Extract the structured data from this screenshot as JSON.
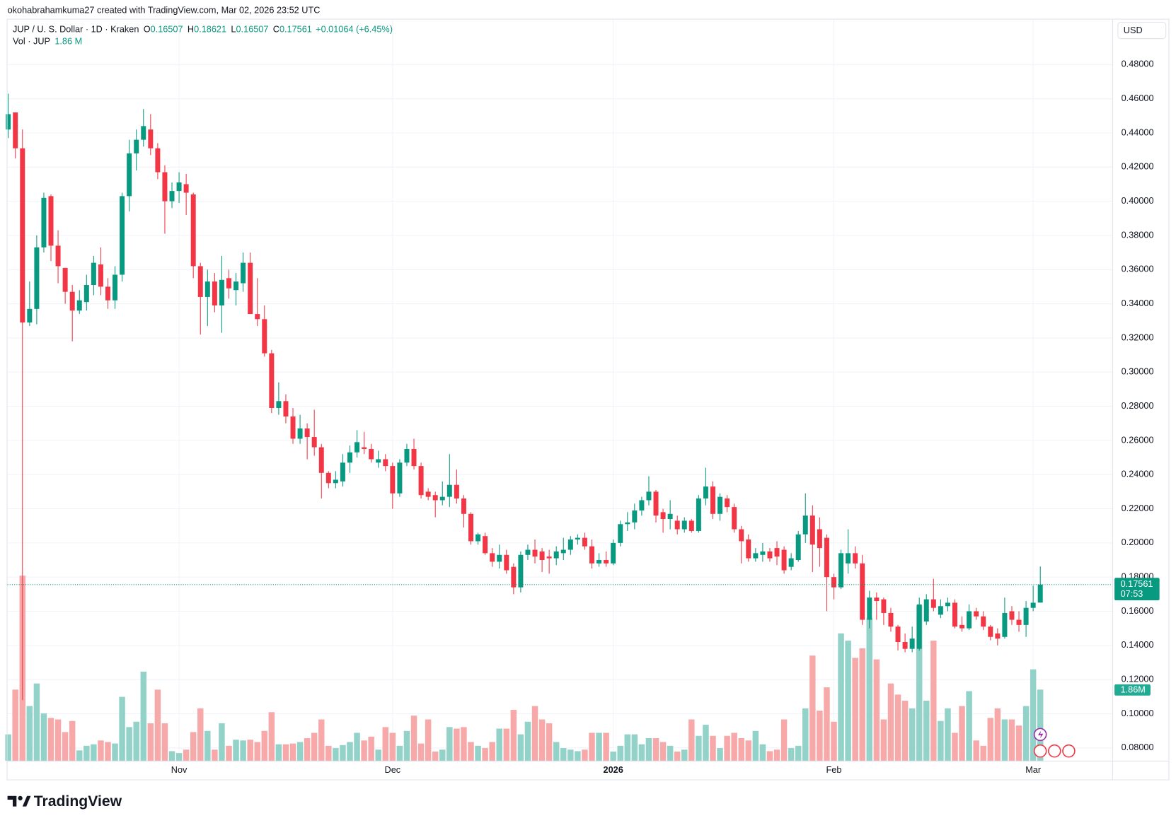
{
  "header": {
    "credit": "okohabrahamkuma27 created with TradingView.com, Mar 02, 2026 23:52 UTC",
    "symbol": "JUP / U. S. Dollar · 1D · Kraken",
    "ohlc_labels": [
      "O",
      "H",
      "L",
      "C"
    ],
    "change": "+0.01064 (+6.45%)",
    "volume_title": "Vol · JUP",
    "volume_value": "1.86 M"
  },
  "footer": {
    "brand": "TradingView"
  },
  "chart_data": {
    "type": "candlestick",
    "currency": "USD",
    "last_price_timer": "07:53",
    "volume_last_label": "1.86M",
    "up_color": "#089981",
    "down_color": "#f23645",
    "volume_up_color": "#92d2c8",
    "volume_down_color": "#f7a9a9",
    "grid": true,
    "categories": [
      null,
      null,
      null,
      null,
      null,
      null,
      null,
      null,
      null,
      null,
      null,
      null,
      null,
      null,
      null,
      null,
      null,
      null,
      null,
      null,
      null,
      null,
      null,
      null,
      "Nov",
      null,
      null,
      null,
      null,
      null,
      null,
      null,
      null,
      null,
      null,
      null,
      null,
      null,
      null,
      null,
      null,
      null,
      null,
      null,
      null,
      null,
      null,
      null,
      null,
      null,
      null,
      null,
      null,
      null,
      "Dec",
      null,
      null,
      null,
      null,
      null,
      null,
      null,
      null,
      null,
      null,
      null,
      null,
      null,
      null,
      null,
      null,
      null,
      null,
      null,
      null,
      null,
      null,
      null,
      null,
      null,
      null,
      null,
      null,
      null,
      null,
      "2026",
      null,
      null,
      null,
      null,
      null,
      null,
      null,
      null,
      null,
      null,
      null,
      null,
      null,
      null,
      null,
      null,
      null,
      null,
      null,
      null,
      null,
      null,
      null,
      null,
      null,
      null,
      null,
      null,
      null,
      null,
      "Feb",
      null,
      null,
      null,
      null,
      null,
      null,
      null,
      null,
      null,
      null,
      null,
      null,
      null,
      null,
      null,
      null,
      null,
      null,
      null,
      null,
      null,
      null,
      null,
      null,
      null,
      null,
      null,
      "Mar",
      null
    ],
    "open": [
      0.442,
      0.452,
      0.431,
      0.329,
      0.337,
      0.373,
      0.403,
      0.374,
      0.361,
      0.347,
      0.336,
      0.341,
      0.351,
      0.363,
      0.35,
      0.342,
      0.357,
      0.403,
      0.428,
      0.436,
      0.442,
      0.431,
      0.417,
      0.4,
      0.406,
      0.41,
      0.404,
      0.362,
      0.344,
      0.353,
      0.339,
      0.355,
      0.348,
      0.352,
      0.364,
      0.334,
      0.331,
      0.311,
      0.279,
      0.283,
      0.274,
      0.261,
      0.267,
      0.262,
      0.256,
      0.241,
      0.235,
      0.236,
      0.247,
      0.253,
      0.256,
      0.255,
      0.247,
      0.249,
      0.245,
      0.229,
      0.247,
      0.255,
      0.245,
      0.23,
      0.228,
      0.225,
      0.227,
      0.234,
      0.226,
      0.217,
      0.201,
      0.204,
      0.194,
      0.189,
      0.193,
      0.186,
      0.174,
      0.193,
      0.196,
      0.195,
      0.192,
      0.191,
      0.194,
      0.196,
      0.202,
      0.203,
      0.198,
      0.188,
      0.19,
      0.188,
      0.2,
      0.211,
      0.212,
      0.219,
      0.225,
      0.23,
      0.218,
      0.214,
      0.213,
      0.208,
      0.213,
      0.207,
      0.226,
      0.233,
      0.217,
      0.226,
      0.221,
      0.208,
      0.202,
      0.191,
      0.193,
      0.195,
      0.197,
      0.196,
      0.186,
      0.19,
      0.205,
      0.216,
      0.208,
      0.203,
      0.18,
      0.174,
      0.188,
      0.194,
      0.188,
      0.155,
      0.168,
      0.167,
      0.159,
      0.151,
      0.142,
      0.138,
      0.138,
      0.154,
      0.167,
      0.158,
      0.163,
      0.165,
      0.152,
      0.15,
      0.16,
      0.157,
      0.151,
      0.147,
      0.145,
      0.16,
      0.155,
      0.152,
      0.162,
      0.16507
    ],
    "high": [
      0.463,
      0.452,
      0.442,
      0.353,
      0.38,
      0.405,
      0.404,
      0.383,
      0.361,
      0.351,
      0.348,
      0.357,
      0.368,
      0.373,
      0.355,
      0.362,
      0.405,
      0.436,
      0.442,
      0.454,
      0.451,
      0.434,
      0.421,
      0.411,
      0.417,
      0.416,
      0.405,
      0.364,
      0.36,
      0.358,
      0.368,
      0.36,
      0.358,
      0.37,
      0.37,
      0.355,
      0.339,
      0.313,
      0.294,
      0.287,
      0.279,
      0.275,
      0.27,
      0.278,
      0.258,
      0.242,
      0.242,
      0.252,
      0.257,
      0.266,
      0.265,
      0.258,
      0.254,
      0.252,
      0.247,
      0.249,
      0.258,
      0.261,
      0.247,
      0.232,
      0.23,
      0.236,
      0.252,
      0.243,
      0.228,
      0.218,
      0.206,
      0.206,
      0.197,
      0.199,
      0.196,
      0.188,
      0.195,
      0.199,
      0.202,
      0.197,
      0.196,
      0.198,
      0.203,
      0.204,
      0.205,
      0.206,
      0.202,
      0.194,
      0.195,
      0.202,
      0.213,
      0.218,
      0.223,
      0.227,
      0.239,
      0.231,
      0.22,
      0.225,
      0.216,
      0.215,
      0.214,
      0.228,
      0.244,
      0.236,
      0.229,
      0.228,
      0.223,
      0.21,
      0.205,
      0.197,
      0.2,
      0.197,
      0.201,
      0.198,
      0.194,
      0.207,
      0.229,
      0.222,
      0.215,
      0.205,
      0.182,
      0.196,
      0.208,
      0.198,
      0.193,
      0.172,
      0.171,
      0.168,
      0.162,
      0.152,
      0.147,
      0.151,
      0.168,
      0.17,
      0.179,
      0.167,
      0.168,
      0.167,
      0.157,
      0.164,
      0.162,
      0.16,
      0.152,
      0.15,
      0.168,
      0.163,
      0.16,
      0.166,
      0.175,
      0.18621
    ],
    "low": [
      0.437,
      0.425,
      0.108,
      0.327,
      0.328,
      0.37,
      0.365,
      0.352,
      0.34,
      0.318,
      0.334,
      0.336,
      0.345,
      0.345,
      0.337,
      0.337,
      0.353,
      0.394,
      0.418,
      0.432,
      0.427,
      0.413,
      0.381,
      0.396,
      0.399,
      0.392,
      0.355,
      0.322,
      0.327,
      0.335,
      0.323,
      0.343,
      0.339,
      0.347,
      0.334,
      0.327,
      0.309,
      0.276,
      0.275,
      0.27,
      0.258,
      0.258,
      0.249,
      0.251,
      0.226,
      0.232,
      0.232,
      0.233,
      0.241,
      0.25,
      0.252,
      0.247,
      0.244,
      0.242,
      0.22,
      0.227,
      0.245,
      0.243,
      0.226,
      0.225,
      0.215,
      0.222,
      0.221,
      0.223,
      0.209,
      0.199,
      0.199,
      0.193,
      0.186,
      0.185,
      0.182,
      0.17,
      0.171,
      0.19,
      0.188,
      0.183,
      0.182,
      0.187,
      0.19,
      0.193,
      0.199,
      0.196,
      0.185,
      0.186,
      0.186,
      0.187,
      0.198,
      0.207,
      0.208,
      0.216,
      0.222,
      0.212,
      0.206,
      0.208,
      0.205,
      0.206,
      0.206,
      0.206,
      0.222,
      0.214,
      0.213,
      0.218,
      0.206,
      0.188,
      0.189,
      0.189,
      0.189,
      0.189,
      0.187,
      0.182,
      0.184,
      0.189,
      0.2,
      0.183,
      0.186,
      0.16,
      0.167,
      0.173,
      0.182,
      0.185,
      0.152,
      0.15,
      0.155,
      0.152,
      0.148,
      0.137,
      0.136,
      0.136,
      0.137,
      0.152,
      0.16,
      0.156,
      0.16,
      0.15,
      0.148,
      0.149,
      0.155,
      0.149,
      0.143,
      0.14,
      0.144,
      0.152,
      0.148,
      0.145,
      0.16,
      0.16507
    ],
    "close": [
      0.451,
      0.431,
      0.329,
      0.337,
      0.373,
      0.402,
      0.374,
      0.362,
      0.347,
      0.336,
      0.342,
      0.351,
      0.364,
      0.35,
      0.342,
      0.357,
      0.403,
      0.428,
      0.436,
      0.444,
      0.431,
      0.417,
      0.4,
      0.406,
      0.411,
      0.405,
      0.362,
      0.344,
      0.353,
      0.339,
      0.354,
      0.349,
      0.353,
      0.364,
      0.334,
      0.331,
      0.311,
      0.279,
      0.283,
      0.274,
      0.261,
      0.267,
      0.262,
      0.256,
      0.241,
      0.235,
      0.237,
      0.247,
      0.253,
      0.259,
      0.255,
      0.249,
      0.249,
      0.245,
      0.229,
      0.247,
      0.255,
      0.245,
      0.228,
      0.227,
      0.225,
      0.227,
      0.234,
      0.226,
      0.217,
      0.201,
      0.205,
      0.194,
      0.189,
      0.193,
      0.184,
      0.174,
      0.193,
      0.196,
      0.192,
      0.19,
      0.191,
      0.195,
      0.196,
      0.202,
      0.203,
      0.198,
      0.188,
      0.19,
      0.188,
      0.2,
      0.211,
      0.212,
      0.219,
      0.225,
      0.23,
      0.216,
      0.214,
      0.217,
      0.208,
      0.213,
      0.207,
      0.226,
      0.233,
      0.217,
      0.227,
      0.221,
      0.208,
      0.201,
      0.191,
      0.194,
      0.195,
      0.191,
      0.192,
      0.184,
      0.191,
      0.205,
      0.216,
      0.199,
      0.197,
      0.18,
      0.174,
      0.194,
      0.194,
      0.188,
      0.155,
      0.168,
      0.166,
      0.159,
      0.151,
      0.142,
      0.138,
      0.144,
      0.164,
      0.167,
      0.162,
      0.163,
      0.165,
      0.151,
      0.15,
      0.16,
      0.157,
      0.151,
      0.145,
      0.144,
      0.159,
      0.155,
      0.152,
      0.162,
      0.165,
      0.17561
    ],
    "volume": [
      0.69,
      1.86,
      4.84,
      1.43,
      2.02,
      1.24,
      1.12,
      1.08,
      0.75,
      1.04,
      0.27,
      0.39,
      0.43,
      0.53,
      0.49,
      0.45,
      1.67,
      0.88,
      1.02,
      2.33,
      0.98,
      1.86,
      0.98,
      0.25,
      0.2,
      0.29,
      0.75,
      1.37,
      0.78,
      0.29,
      0.98,
      0.39,
      0.55,
      0.53,
      0.55,
      0.49,
      0.78,
      1.27,
      0.43,
      0.43,
      0.45,
      0.49,
      0.59,
      0.73,
      1.08,
      0.39,
      0.33,
      0.41,
      0.49,
      0.73,
      0.53,
      0.63,
      0.29,
      0.88,
      0.73,
      0.39,
      0.78,
      1.18,
      0.45,
      1.08,
      0.24,
      0.29,
      0.88,
      0.84,
      0.88,
      0.49,
      0.39,
      0.33,
      0.49,
      0.84,
      0.84,
      1.33,
      0.69,
      1.02,
      1.43,
      1.08,
      0.98,
      0.49,
      0.33,
      0.29,
      0.25,
      0.29,
      0.73,
      0.73,
      0.73,
      0.24,
      0.39,
      0.69,
      0.69,
      0.43,
      0.59,
      0.59,
      0.49,
      0.39,
      0.24,
      0.29,
      1.08,
      0.65,
      0.94,
      0.65,
      0.33,
      0.65,
      0.73,
      0.59,
      0.53,
      0.78,
      0.43,
      0.25,
      0.29,
      1.08,
      0.33,
      0.39,
      1.37,
      2.75,
      1.31,
      1.92,
      1.02,
      3.33,
      3.14,
      2.69,
      2.94,
      3.73,
      2.65,
      1.08,
      2.02,
      1.73,
      1.57,
      1.37,
      4.06,
      1.57,
      3.14,
      1.04,
      1.37,
      0.73,
      1.43,
      1.82,
      0.53,
      0.39,
      1.12,
      1.37,
      1.08,
      1.08,
      0.92,
      1.43,
      2.39,
      1.86
    ],
    "ylim": [
      0.0725,
      0.5068
    ],
    "vlim": [
      0,
      19.4
    ],
    "yticks": [
      {
        "value": 0.48,
        "label": "0.48000"
      },
      {
        "value": 0.46,
        "label": "0.46000"
      },
      {
        "value": 0.44,
        "label": "0.44000"
      },
      {
        "value": 0.42,
        "label": "0.42000"
      },
      {
        "value": 0.4,
        "label": "0.40000"
      },
      {
        "value": 0.38,
        "label": "0.38000"
      },
      {
        "value": 0.36,
        "label": "0.36000"
      },
      {
        "value": 0.34,
        "label": "0.34000"
      },
      {
        "value": 0.32,
        "label": "0.32000"
      },
      {
        "value": 0.3,
        "label": "0.30000"
      },
      {
        "value": 0.28,
        "label": "0.28000"
      },
      {
        "value": 0.26,
        "label": "0.26000"
      },
      {
        "value": 0.24,
        "label": "0.24000"
      },
      {
        "value": 0.22,
        "label": "0.22000"
      },
      {
        "value": 0.2,
        "label": "0.20000"
      },
      {
        "value": 0.18,
        "label": "0.18000"
      },
      {
        "value": 0.16,
        "label": "0.16000"
      },
      {
        "value": 0.14,
        "label": "0.14000"
      },
      {
        "value": 0.12,
        "label": "0.12000"
      },
      {
        "value": 0.1,
        "label": "0.10000"
      },
      {
        "value": 0.08,
        "label": "0.08000"
      }
    ]
  }
}
